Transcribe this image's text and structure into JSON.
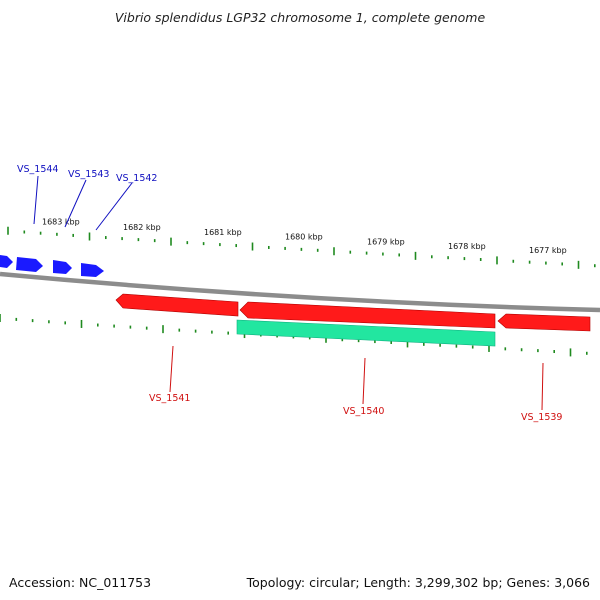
{
  "title": "Vibrio splendidus LGP32 chromosome 1, complete genome",
  "footer": {
    "accession": "Accession: NC_011753",
    "summary": "Topology: circular; Length: 3,299,302 bp; Genes: 3,066"
  },
  "colors": {
    "backbone": "#8c8c8c",
    "tick": "#1f8a1f",
    "forward_gene": "#1a1aff",
    "reverse_gene": "#ff1a1a",
    "rna_gene": "#22e6a0",
    "forward_label": "#1010c0",
    "reverse_label": "#d01010"
  },
  "scale_labels": [
    "1683 kbp",
    "1682 kbp",
    "1681 kbp",
    "1680 kbp",
    "1679 kbp",
    "1678 kbp",
    "1677 kbp"
  ],
  "gene_labels": {
    "forward": [
      "VS_1544",
      "VS_1543",
      "VS_1542"
    ],
    "reverse": [
      "VS_1541",
      "VS_1540",
      "VS_1539"
    ]
  }
}
